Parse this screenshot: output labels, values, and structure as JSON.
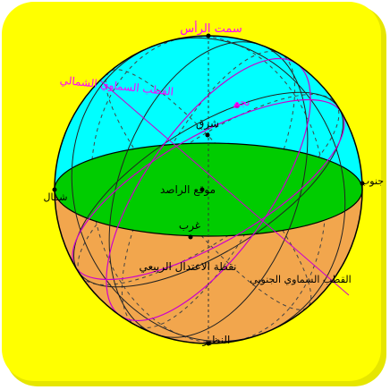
{
  "labels": {
    "zenith": "سمت الرأس",
    "north_celestial_pole": "القطب السماوي الشمالي",
    "star": "نجم",
    "east": "شرق",
    "north": "شمال",
    "south": "جنوب",
    "observer_location": "موقع الراصد",
    "west": "غرب",
    "vernal_equinox": "نقطة الاعتدال الربيعي",
    "south_celestial_pole": "القطب السماوي الجنوبي",
    "nadir": "النظير"
  },
  "colors": {
    "background": "#ffff00",
    "upper_sky": "#00ffff",
    "horizon_plane": "#00cc00",
    "lower_sphere": "#f2a64d",
    "celestial_label": "#ff00ff",
    "outline": "#000000"
  }
}
